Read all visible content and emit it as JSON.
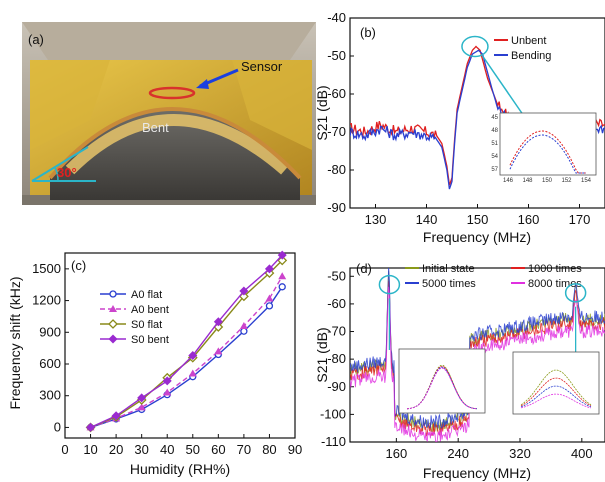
{
  "panels": {
    "a": {
      "label": "(a)",
      "annotations": {
        "sensor": "Sensor",
        "bent": "Bent",
        "angle": "30°"
      },
      "colors": {
        "sensor_arrow": "#1a3fe0",
        "angle_mark": "#2bb5c8",
        "angle_text": "#e02020"
      }
    }
  },
  "chart_data": [
    {
      "panel": "b",
      "label": "(b)",
      "type": "line",
      "xlabel": "Frequency (MHz)",
      "ylabel": "S21 (dB)",
      "xlim": [
        125,
        175
      ],
      "ylim": [
        -90,
        -40
      ],
      "xticks": [
        130,
        140,
        150,
        160,
        170
      ],
      "yticks": [
        -40,
        -50,
        -60,
        -70,
        -80,
        -90
      ],
      "legend": "top-right",
      "series": [
        {
          "name": "Unbent",
          "color": "#e02020",
          "x": [
            125,
            128,
            131,
            134,
            137,
            140,
            142,
            143,
            144,
            144.5,
            145,
            145.5,
            146,
            147,
            148,
            149,
            149.7,
            150.5,
            152,
            154,
            156,
            158,
            161,
            164,
            167,
            170,
            175
          ],
          "y": [
            -69,
            -70,
            -68,
            -70,
            -69,
            -70,
            -71,
            -73,
            -79,
            -84,
            -82,
            -72,
            -64,
            -58,
            -52,
            -48.5,
            -47.5,
            -48.5,
            -56,
            -63,
            -66,
            -68,
            -69,
            -69,
            -70,
            -68,
            -68
          ]
        },
        {
          "name": "Bending",
          "color": "#2a3fd0",
          "x": [
            125,
            128,
            131,
            134,
            137,
            140,
            142,
            143,
            144,
            144.5,
            145,
            145.5,
            146,
            147,
            148,
            149,
            150.2,
            151,
            152.5,
            154,
            156,
            158,
            161,
            164,
            167,
            170,
            175
          ],
          "y": [
            -70,
            -71,
            -69,
            -71,
            -70,
            -71,
            -72,
            -74,
            -80,
            -85,
            -83,
            -73,
            -65,
            -59,
            -53,
            -49.5,
            -48.5,
            -49.5,
            -57,
            -64,
            -67,
            -69,
            -70,
            -70,
            -71,
            -69,
            -69
          ]
        }
      ],
      "inset": {
        "xticks": [
          "146",
          "148",
          "150",
          "152",
          "154"
        ],
        "yticks": [
          "45",
          "48",
          "51",
          "54",
          "57"
        ]
      }
    },
    {
      "panel": "c",
      "label": "(c)",
      "type": "line",
      "xlabel": "Humidity (RH%)",
      "ylabel": "Frequency shift (kHz)",
      "xlim": [
        0,
        90
      ],
      "ylim": [
        -100,
        1650
      ],
      "xticks": [
        0,
        10,
        20,
        30,
        40,
        50,
        60,
        70,
        80,
        90
      ],
      "yticks": [
        0,
        300,
        600,
        900,
        1200,
        1500
      ],
      "legend": "top-left",
      "series": [
        {
          "name": "A0 flat",
          "color": "#2a3fd0",
          "marker": "circle",
          "dashed": false,
          "x": [
            10,
            20,
            30,
            40,
            50,
            60,
            70,
            80,
            85
          ],
          "y": [
            0,
            80,
            170,
            310,
            480,
            690,
            910,
            1150,
            1330
          ]
        },
        {
          "name": "A0 bent",
          "color": "#cc44cc",
          "marker": "triangle",
          "dashed": true,
          "x": [
            10,
            20,
            30,
            40,
            50,
            60,
            70,
            80,
            85
          ],
          "y": [
            0,
            85,
            190,
            330,
            510,
            720,
            960,
            1220,
            1430
          ]
        },
        {
          "name": "S0 flat",
          "color": "#8a8a1a",
          "marker": "diamond-open",
          "dashed": false,
          "x": [
            10,
            20,
            30,
            40,
            50,
            60,
            70,
            80,
            85
          ],
          "y": [
            0,
            100,
            260,
            470,
            660,
            950,
            1240,
            1460,
            1580
          ]
        },
        {
          "name": "S0 bent",
          "color": "#9a2ad0",
          "marker": "diamond",
          "dashed": false,
          "x": [
            10,
            20,
            30,
            40,
            50,
            60,
            70,
            80,
            85
          ],
          "y": [
            0,
            110,
            280,
            440,
            680,
            1000,
            1290,
            1500,
            1630
          ]
        }
      ]
    },
    {
      "panel": "d",
      "label": "(d)",
      "type": "line",
      "xlabel": "Frequency (MHz)",
      "ylabel": "S21 (dB)",
      "xlim": [
        100,
        430
      ],
      "ylim": [
        -110,
        -47
      ],
      "xticks": [
        160,
        240,
        320,
        400
      ],
      "yticks": [
        -50,
        -60,
        -70,
        -80,
        -90,
        -100,
        -110
      ],
      "legend": "top",
      "series": [
        {
          "name": "Initial state",
          "color": "#8a9a1a"
        },
        {
          "name": "1000 times",
          "color": "#e02020"
        },
        {
          "name": "5000 times",
          "color": "#2a3fd0"
        },
        {
          "name": "8000 times",
          "color": "#e030e0"
        }
      ]
    }
  ]
}
